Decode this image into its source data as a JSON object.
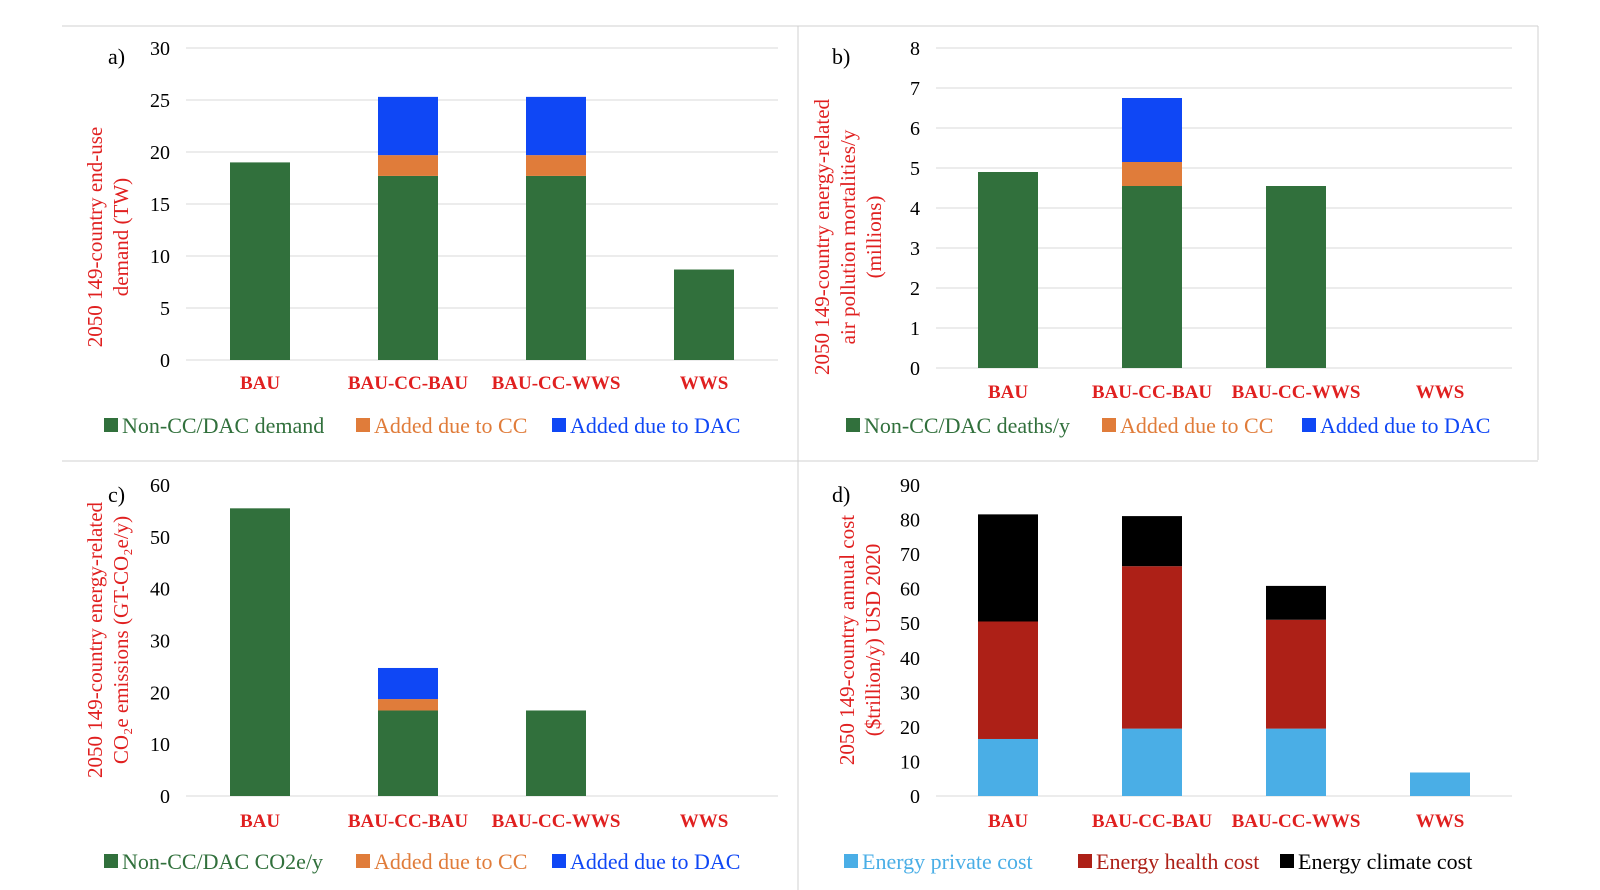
{
  "chart_data": [
    {
      "panel_label": "a)",
      "type": "bar",
      "stacked": true,
      "ylabel_lines": [
        "2050 149-country end-use",
        "demand (TW)"
      ],
      "categories": [
        "BAU",
        "BAU-CC-BAU",
        "BAU-CC-WWS",
        "WWS"
      ],
      "ylim": [
        0,
        30
      ],
      "yticks": [
        0,
        5,
        10,
        15,
        20,
        25,
        30
      ],
      "grid": true,
      "legend_position": "bottom",
      "series": [
        {
          "name": "Non-CC/DAC demand",
          "color": "#31703c",
          "values": [
            19.0,
            17.7,
            17.7,
            8.7
          ]
        },
        {
          "name": "Added due to CC",
          "color": "#e07c3a",
          "values": [
            0,
            2.0,
            2.0,
            0
          ]
        },
        {
          "name": "Added due to DAC",
          "color": "#0f47f5",
          "values": [
            0,
            5.6,
            5.6,
            0
          ]
        }
      ]
    },
    {
      "panel_label": "b)",
      "type": "bar",
      "stacked": true,
      "ylabel_lines": [
        "2050 149-country energy-related",
        "air pollution mortalities/y",
        "(millions)"
      ],
      "categories": [
        "BAU",
        "BAU-CC-BAU",
        "BAU-CC-WWS",
        "WWS"
      ],
      "ylim": [
        0,
        8
      ],
      "yticks": [
        0,
        1,
        2,
        3,
        4,
        5,
        6,
        7,
        8
      ],
      "grid": true,
      "legend_position": "bottom",
      "series": [
        {
          "name": "Non-CC/DAC deaths/y",
          "color": "#31703c",
          "values": [
            4.9,
            4.55,
            4.55,
            0
          ]
        },
        {
          "name": "Added due to CC",
          "color": "#e07c3a",
          "values": [
            0,
            0.6,
            0,
            0
          ]
        },
        {
          "name": "Added due to DAC",
          "color": "#0f47f5",
          "values": [
            0,
            1.6,
            0,
            0
          ]
        }
      ]
    },
    {
      "panel_label": "c)",
      "type": "bar",
      "stacked": true,
      "ylabel_lines": [
        "2050 149-country energy-related",
        "CO₂e emissions (GT-CO₂e/y)"
      ],
      "categories": [
        "BAU",
        "BAU-CC-BAU",
        "BAU-CC-WWS",
        "WWS"
      ],
      "ylim": [
        0,
        60
      ],
      "yticks": [
        0,
        10,
        20,
        30,
        40,
        50,
        60
      ],
      "grid": false,
      "legend_position": "bottom",
      "series": [
        {
          "name": "Non-CC/DAC CO2e/y",
          "color": "#31703c",
          "values": [
            55.5,
            16.5,
            16.5,
            0
          ]
        },
        {
          "name": "Added due to CC",
          "color": "#e07c3a",
          "values": [
            0,
            2.2,
            0,
            0
          ]
        },
        {
          "name": "Added due to DAC",
          "color": "#0f47f5",
          "values": [
            0,
            6.0,
            0,
            0
          ]
        }
      ]
    },
    {
      "panel_label": "d)",
      "type": "bar",
      "stacked": true,
      "ylabel_lines": [
        "2050 149-country annual cost",
        "($trillion/y) USD 2020"
      ],
      "categories": [
        "BAU",
        "BAU-CC-BAU",
        "BAU-CC-WWS",
        "WWS"
      ],
      "ylim": [
        0,
        90
      ],
      "yticks": [
        0,
        10,
        20,
        30,
        40,
        50,
        60,
        70,
        80,
        90
      ],
      "grid": false,
      "legend_position": "bottom",
      "series": [
        {
          "name": "Energy private cost",
          "color": "#4aaee6",
          "values": [
            16.5,
            19.5,
            19.5,
            6.8
          ]
        },
        {
          "name": "Energy health cost",
          "color": "#ad2017",
          "values": [
            34.0,
            47.0,
            31.5,
            0
          ]
        },
        {
          "name": "Energy climate cost",
          "color": "#000000",
          "values": [
            31.0,
            14.5,
            9.8,
            0
          ]
        }
      ]
    }
  ],
  "style": {
    "ylabel_color": "#e02020",
    "category_color": "#e02020",
    "tick_color": "#000000",
    "grid_color": "#d9d9d9",
    "border_color": "#d0d0d0"
  }
}
